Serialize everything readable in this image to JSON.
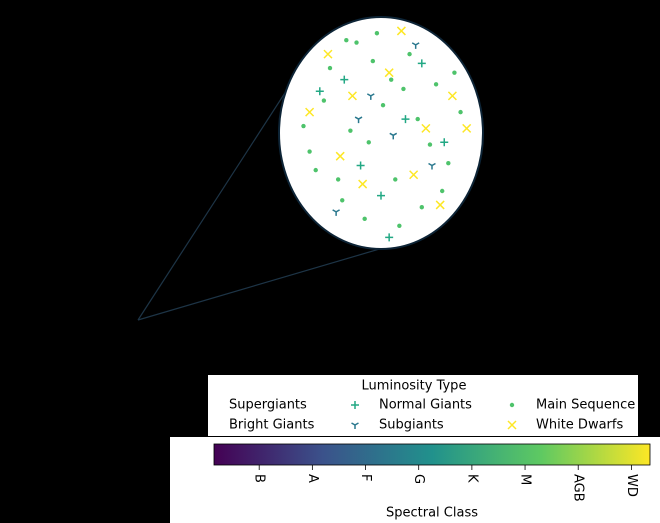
{
  "chart_data": {
    "type": "scatter",
    "xlim": [
      0,
      10
    ],
    "ylim": [
      0,
      10
    ],
    "legend_title": "Luminosity Type",
    "legend_ncol": 3,
    "series": [
      {
        "name": "Supergiants"
      },
      {
        "name": "Bright Giants"
      },
      {
        "name": "Normal Giants",
        "color": "#22a884",
        "marker": "+",
        "x": [
          2.0,
          4.0,
          6.2,
          8.1,
          5.0,
          3.2,
          7.0,
          5.4
        ],
        "values": [
          6.8,
          3.6,
          5.6,
          4.6,
          2.3,
          7.3,
          8.0,
          0.5
        ]
      },
      {
        "name": "Subgiants",
        "color": "#2a788e",
        "marker": "tri_down",
        "x": [
          2.8,
          5.6,
          7.5,
          4.5,
          6.7,
          3.9
        ],
        "values": [
          1.6,
          4.9,
          3.6,
          6.6,
          8.8,
          5.6
        ]
      },
      {
        "name": "Main Sequence",
        "color": "#4ec36b",
        "marker": "o",
        "x": [
          1.2,
          2.5,
          3.8,
          5.1,
          6.4,
          7.7,
          8.9,
          1.8,
          3.1,
          4.4,
          5.7,
          7.0,
          8.3,
          2.2,
          3.5,
          4.8,
          6.1,
          7.4,
          8.6,
          1.5,
          2.9,
          4.2,
          5.5,
          6.8,
          8.0,
          3.3,
          5.9,
          4.6
        ],
        "values": [
          5.3,
          7.8,
          8.9,
          6.2,
          8.4,
          7.1,
          5.9,
          3.4,
          2.1,
          4.6,
          3.0,
          1.8,
          3.7,
          6.4,
          5.1,
          9.3,
          6.9,
          4.5,
          7.6,
          4.2,
          3.0,
          1.3,
          7.3,
          5.6,
          2.5,
          9.0,
          1.0,
          8.1
        ]
      },
      {
        "name": "White Dwarfs",
        "color": "#fde725",
        "marker": "x",
        "x": [
          1.5,
          3.0,
          5.4,
          7.2,
          8.5,
          2.4,
          4.1,
          6.6,
          7.9,
          3.6,
          6.0,
          9.2
        ],
        "values": [
          5.9,
          4.0,
          7.6,
          5.2,
          6.6,
          8.4,
          2.8,
          3.2,
          1.9,
          6.6,
          9.4,
          5.2
        ]
      }
    ],
    "colorbar": {
      "label": "Spectral Class",
      "colormap": [
        "#440154",
        "#3b528b",
        "#21918c",
        "#5ec962",
        "#fde725"
      ],
      "clim": [
        0.15,
        8.35
      ],
      "ticks": [
        {
          "value": 1,
          "label": "B"
        },
        {
          "value": 2,
          "label": "A"
        },
        {
          "value": 3,
          "label": "F"
        },
        {
          "value": 4,
          "label": "G"
        },
        {
          "value": 5,
          "label": "K"
        },
        {
          "value": 6,
          "label": "M"
        },
        {
          "value": 7,
          "label": "AGB"
        },
        {
          "value": 8,
          "label": "WD"
        }
      ]
    }
  }
}
